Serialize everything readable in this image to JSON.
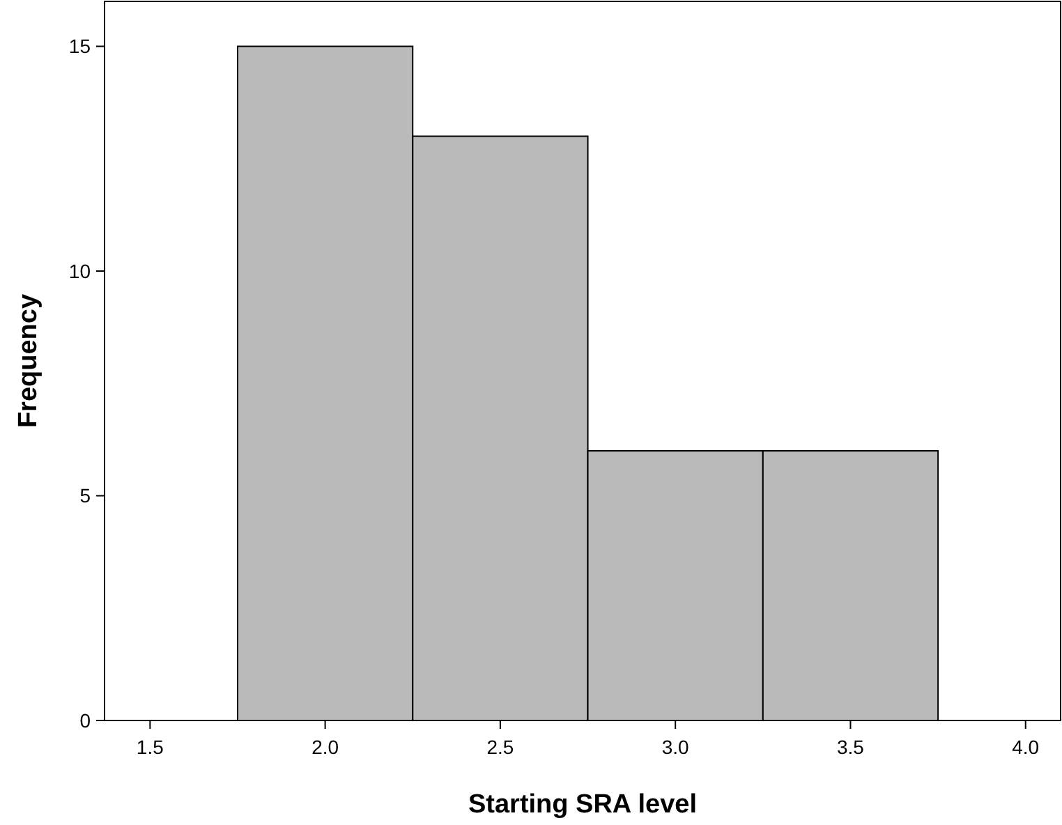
{
  "chart_data": {
    "type": "histogram",
    "xlabel": "Starting SRA level",
    "ylabel": "Frequency",
    "bins": [
      1.75,
      2.25,
      2.75,
      3.25,
      3.75
    ],
    "values": [
      15,
      13,
      6,
      6
    ],
    "color": "#bababa",
    "xlim": [
      1.37,
      4.1
    ],
    "xticks": [
      {
        "value": 1.5,
        "label": "1.5"
      },
      {
        "value": 2,
        "label": "2.0"
      },
      {
        "value": 2.5,
        "label": "2.5"
      },
      {
        "value": 3,
        "label": "3.0"
      },
      {
        "value": 3.5,
        "label": "3.5"
      },
      {
        "value": 4,
        "label": "4.0"
      }
    ],
    "ylim": [
      0,
      16
    ],
    "yticks": [
      0,
      5,
      10,
      15
    ],
    "grid": false
  }
}
